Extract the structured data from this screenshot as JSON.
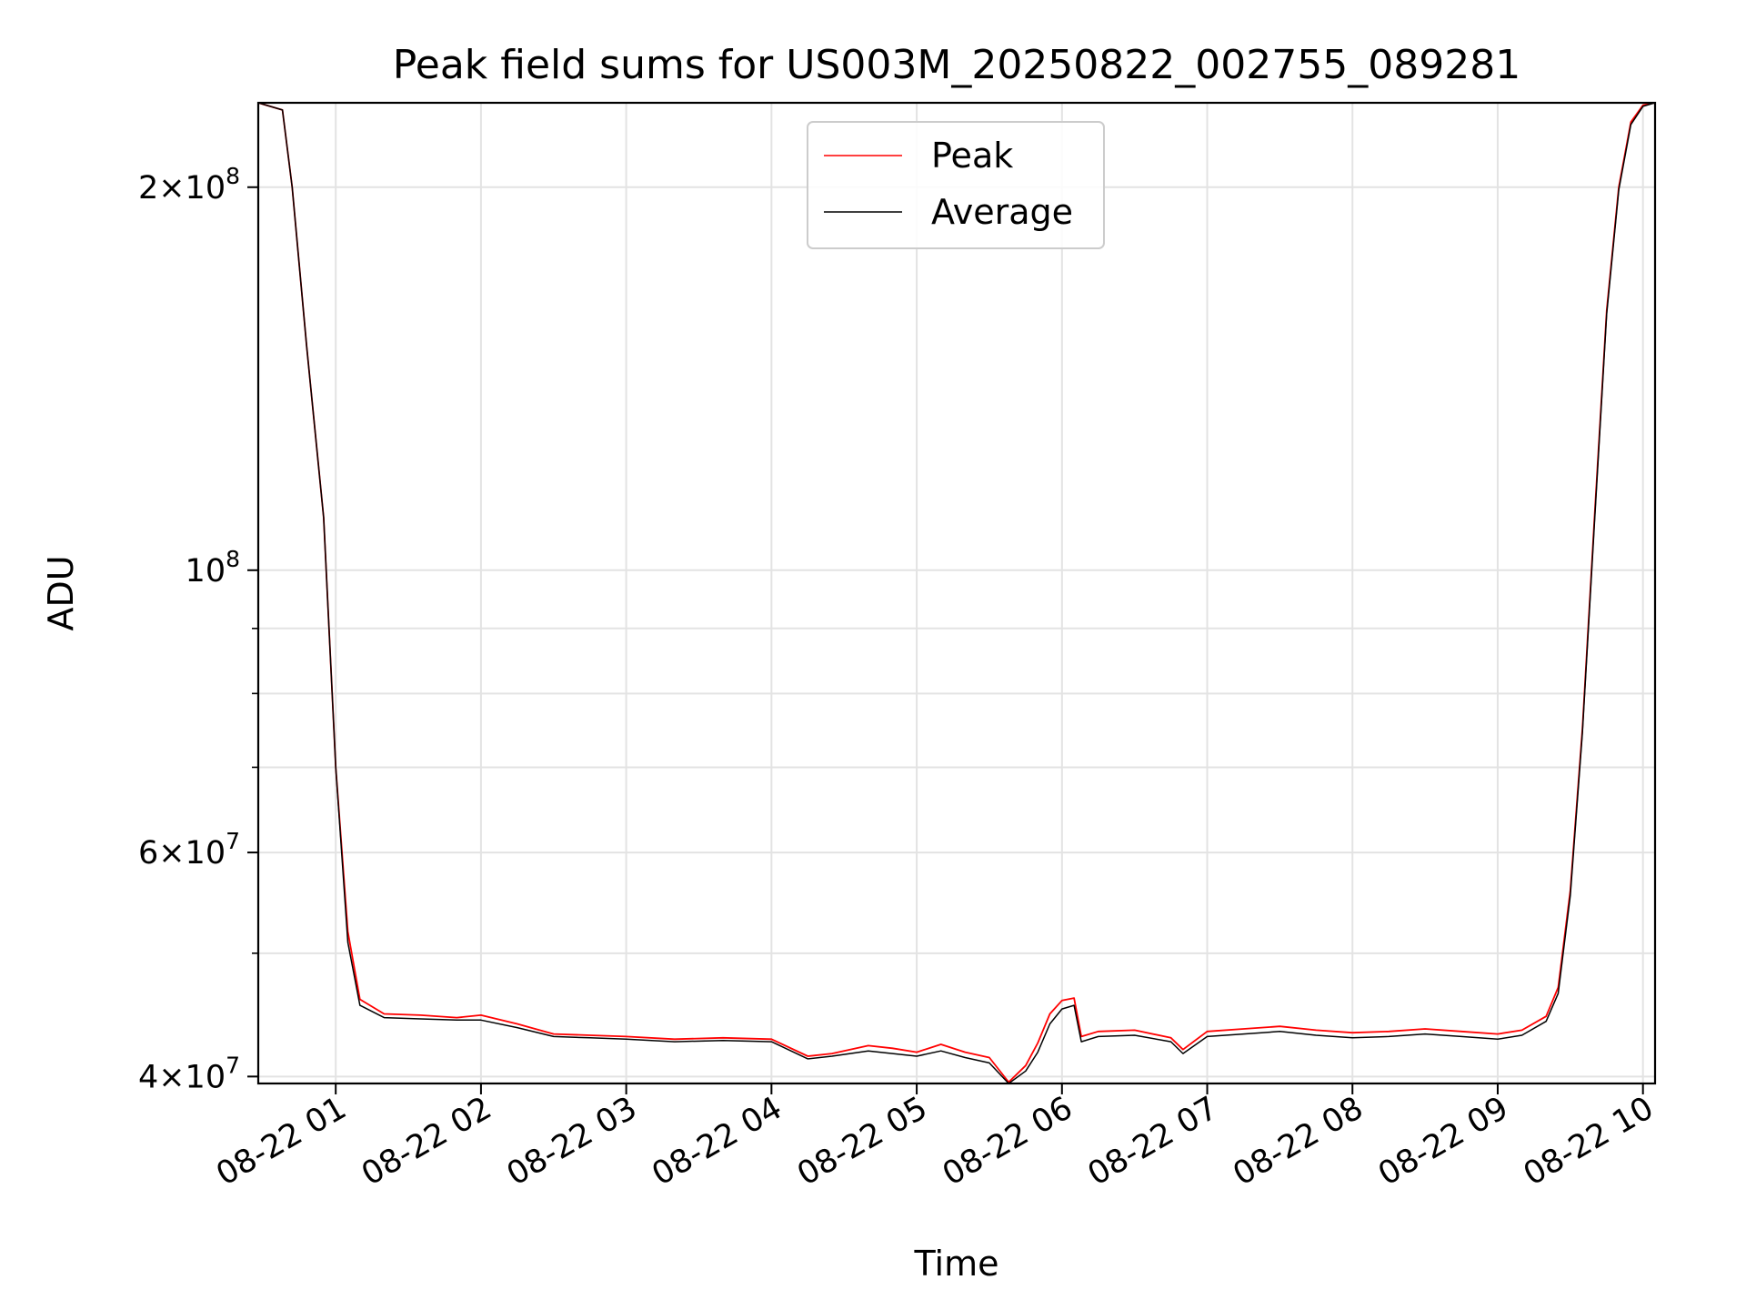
{
  "chart_data": {
    "type": "line",
    "title": "Peak field sums for US003M_20250822_002755_089281",
    "xlabel": "Time",
    "ylabel": "ADU",
    "yscale": "log",
    "grid": true,
    "legend": {
      "placement": "upper center"
    },
    "xlim": [
      "2025-08-22 00:28",
      "2025-08-22 10:05"
    ],
    "ylim": [
      39500000,
      233000000
    ],
    "x_ticks": [
      {
        "value": "2025-08-22 01:00",
        "label": "08-22 01"
      },
      {
        "value": "2025-08-22 02:00",
        "label": "08-22 02"
      },
      {
        "value": "2025-08-22 03:00",
        "label": "08-22 03"
      },
      {
        "value": "2025-08-22 04:00",
        "label": "08-22 04"
      },
      {
        "value": "2025-08-22 05:00",
        "label": "08-22 05"
      },
      {
        "value": "2025-08-22 06:00",
        "label": "08-22 06"
      },
      {
        "value": "2025-08-22 07:00",
        "label": "08-22 07"
      },
      {
        "value": "2025-08-22 08:00",
        "label": "08-22 08"
      },
      {
        "value": "2025-08-22 09:00",
        "label": "08-22 09"
      },
      {
        "value": "2025-08-22 10:00",
        "label": "08-22 10"
      }
    ],
    "y_major_ticks": [
      {
        "value": 40000000,
        "base": "4",
        "exp": "7"
      },
      {
        "value": 60000000,
        "base": "6",
        "exp": "7"
      },
      {
        "value": 100000000,
        "base": "",
        "exp": "8"
      },
      {
        "value": 200000000,
        "base": "2",
        "exp": "8"
      }
    ],
    "y_minor_ticks": [
      50000000,
      70000000,
      80000000,
      90000000
    ],
    "series": [
      {
        "name": "Peak",
        "color": "#ff0000",
        "x": [
          "2025-08-22 00:28",
          "2025-08-22 00:38",
          "2025-08-22 00:42",
          "2025-08-22 00:48",
          "2025-08-22 00:55",
          "2025-08-22 01:00",
          "2025-08-22 01:05",
          "2025-08-22 01:10",
          "2025-08-22 01:20",
          "2025-08-22 01:35",
          "2025-08-22 01:50",
          "2025-08-22 02:00",
          "2025-08-22 02:15",
          "2025-08-22 02:30",
          "2025-08-22 02:45",
          "2025-08-22 03:00",
          "2025-08-22 03:20",
          "2025-08-22 03:40",
          "2025-08-22 04:00",
          "2025-08-22 04:15",
          "2025-08-22 04:25",
          "2025-08-22 04:40",
          "2025-08-22 04:50",
          "2025-08-22 05:00",
          "2025-08-22 05:10",
          "2025-08-22 05:20",
          "2025-08-22 05:30",
          "2025-08-22 05:38",
          "2025-08-22 05:45",
          "2025-08-22 05:50",
          "2025-08-22 05:55",
          "2025-08-22 06:00",
          "2025-08-22 06:05",
          "2025-08-22 06:08",
          "2025-08-22 06:15",
          "2025-08-22 06:30",
          "2025-08-22 06:45",
          "2025-08-22 06:50",
          "2025-08-22 07:00",
          "2025-08-22 07:15",
          "2025-08-22 07:30",
          "2025-08-22 07:45",
          "2025-08-22 08:00",
          "2025-08-22 08:15",
          "2025-08-22 08:30",
          "2025-08-22 08:45",
          "2025-08-22 09:00",
          "2025-08-22 09:10",
          "2025-08-22 09:20",
          "2025-08-22 09:25",
          "2025-08-22 09:30",
          "2025-08-22 09:35",
          "2025-08-22 09:40",
          "2025-08-22 09:45",
          "2025-08-22 09:50",
          "2025-08-22 09:55",
          "2025-08-22 10:00",
          "2025-08-22 10:05"
        ],
        "y": [
          233000000,
          230000000,
          200000000,
          150000000,
          110000000,
          70000000,
          52000000,
          46000000,
          44800000,
          44700000,
          44500000,
          44700000,
          44000000,
          43200000,
          43100000,
          43000000,
          42800000,
          42900000,
          42800000,
          41500000,
          41700000,
          42300000,
          42100000,
          41800000,
          42400000,
          41800000,
          41400000,
          39600000,
          40800000,
          42500000,
          44800000,
          45900000,
          46100000,
          43000000,
          43400000,
          43500000,
          42900000,
          42000000,
          43400000,
          43600000,
          43800000,
          43500000,
          43300000,
          43400000,
          43600000,
          43400000,
          43200000,
          43500000,
          44600000,
          47000000,
          56000000,
          75000000,
          110000000,
          160000000,
          200000000,
          225000000,
          232000000,
          233000000
        ]
      },
      {
        "name": "Average",
        "color": "#000000",
        "x": [
          "2025-08-22 00:28",
          "2025-08-22 00:38",
          "2025-08-22 00:42",
          "2025-08-22 00:48",
          "2025-08-22 00:55",
          "2025-08-22 01:00",
          "2025-08-22 01:05",
          "2025-08-22 01:10",
          "2025-08-22 01:20",
          "2025-08-22 01:35",
          "2025-08-22 01:50",
          "2025-08-22 02:00",
          "2025-08-22 02:15",
          "2025-08-22 02:30",
          "2025-08-22 02:45",
          "2025-08-22 03:00",
          "2025-08-22 03:20",
          "2025-08-22 03:40",
          "2025-08-22 04:00",
          "2025-08-22 04:15",
          "2025-08-22 04:25",
          "2025-08-22 04:40",
          "2025-08-22 04:50",
          "2025-08-22 05:00",
          "2025-08-22 05:10",
          "2025-08-22 05:20",
          "2025-08-22 05:30",
          "2025-08-22 05:38",
          "2025-08-22 05:45",
          "2025-08-22 05:50",
          "2025-08-22 05:55",
          "2025-08-22 06:00",
          "2025-08-22 06:05",
          "2025-08-22 06:08",
          "2025-08-22 06:15",
          "2025-08-22 06:30",
          "2025-08-22 06:45",
          "2025-08-22 06:50",
          "2025-08-22 07:00",
          "2025-08-22 07:15",
          "2025-08-22 07:30",
          "2025-08-22 07:45",
          "2025-08-22 08:00",
          "2025-08-22 08:15",
          "2025-08-22 08:30",
          "2025-08-22 08:45",
          "2025-08-22 09:00",
          "2025-08-22 09:10",
          "2025-08-22 09:20",
          "2025-08-22 09:25",
          "2025-08-22 09:30",
          "2025-08-22 09:35",
          "2025-08-22 09:40",
          "2025-08-22 09:45",
          "2025-08-22 09:50",
          "2025-08-22 09:55",
          "2025-08-22 10:00",
          "2025-08-22 10:05"
        ],
        "y": [
          233000000,
          230000000,
          200000000,
          150000000,
          110000000,
          70000000,
          51000000,
          45500000,
          44500000,
          44400000,
          44300000,
          44300000,
          43700000,
          43000000,
          42900000,
          42800000,
          42600000,
          42700000,
          42600000,
          41300000,
          41500000,
          41900000,
          41700000,
          41500000,
          41900000,
          41400000,
          41000000,
          39500000,
          40400000,
          41800000,
          44000000,
          45200000,
          45500000,
          42600000,
          43000000,
          43100000,
          42600000,
          41700000,
          43000000,
          43200000,
          43400000,
          43100000,
          42900000,
          43000000,
          43200000,
          43000000,
          42800000,
          43100000,
          44200000,
          46500000,
          55500000,
          74500000,
          109000000,
          159000000,
          199000000,
          224000000,
          231500000,
          233000000
        ]
      }
    ]
  }
}
